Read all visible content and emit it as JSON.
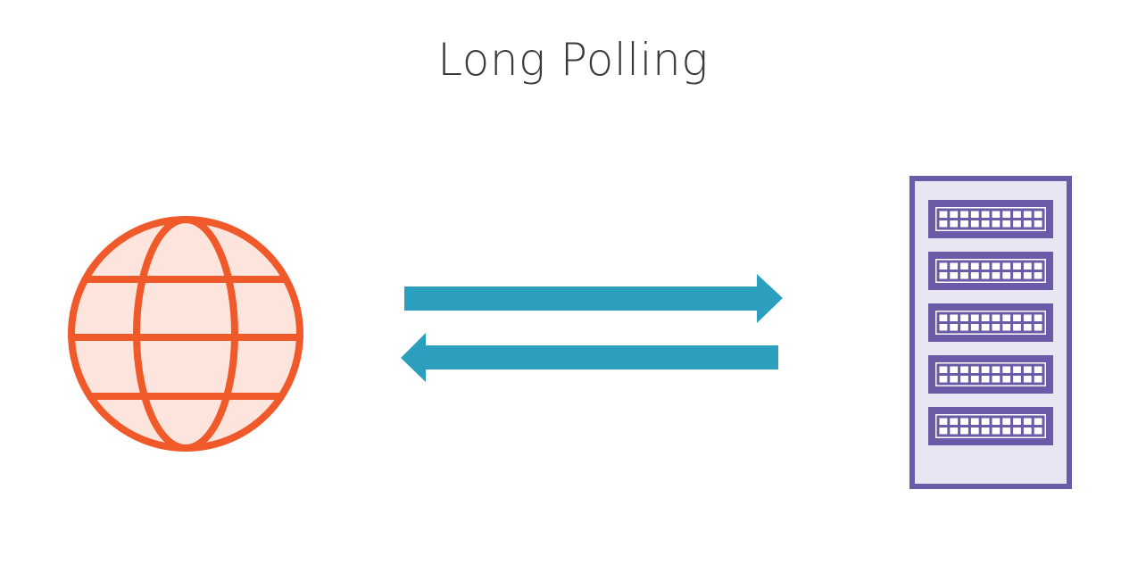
{
  "title": "Long Polling",
  "colors": {
    "client_stroke": "#f05a2b",
    "client_fill": "#fde4dc",
    "arrow": "#2d9fbe",
    "server_stroke": "#6b5aa8",
    "server_fill": "#e9e6f4",
    "background": "#ffffff"
  },
  "icons": {
    "client": "globe-icon",
    "server": "server-rack-icon",
    "request": "arrow-right-icon",
    "response": "arrow-left-icon"
  }
}
